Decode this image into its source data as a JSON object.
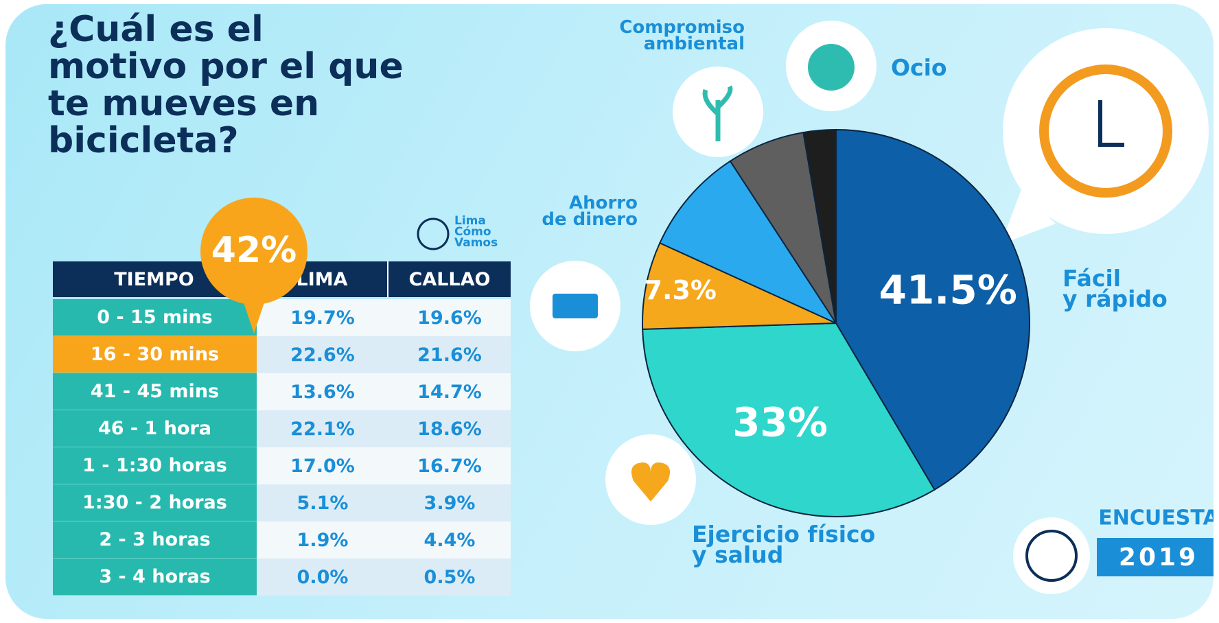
{
  "title": "¿Cuál es el\nmotivo por el que\nte mueves en\nbicicleta?",
  "highlight": "42%",
  "logo": "Lima\nCómo\nVamos",
  "table": {
    "header": [
      "TIEMPO",
      "LIMA",
      "CALLAO"
    ],
    "rows": [
      [
        "0 - 15 mins",
        "19.7%",
        "19.6%"
      ],
      [
        "16 - 30 mins",
        "22.6%",
        "21.6%"
      ],
      [
        "41 - 45 mins",
        "13.6%",
        "14.7%"
      ],
      [
        "46 - 1 hora",
        "22.1%",
        "18.6%"
      ],
      [
        "1 - 1:30 horas",
        "17.0%",
        "16.7%"
      ],
      [
        "1:30 - 2 horas",
        "5.1%",
        "3.9%"
      ],
      [
        "2 - 3 horas",
        "1.9%",
        "4.4%"
      ],
      [
        "3 - 4 horas",
        "0.0%",
        "0.5%"
      ]
    ]
  },
  "badge": {
    "label": "ENCUESTA",
    "year": "2019"
  },
  "chart_data": {
    "type": "pie",
    "categories": [
      "Fácil\ny rápido",
      "Ejercicio físico\ny salud",
      "Ahorro\nde dinero",
      null,
      "Compromiso\nambiental",
      "Ocio"
    ],
    "values": [
      41.5,
      33,
      7.3,
      9,
      6.5,
      2.7
    ],
    "value_labels": [
      "41.5%",
      "33%",
      "7.3%",
      null,
      null,
      null
    ],
    "colors": [
      "#0d5fa8",
      "#2fd6cb",
      "#f5a81c",
      "#2ba9ef",
      "#5f5f5f",
      "#1e1e1e"
    ]
  }
}
